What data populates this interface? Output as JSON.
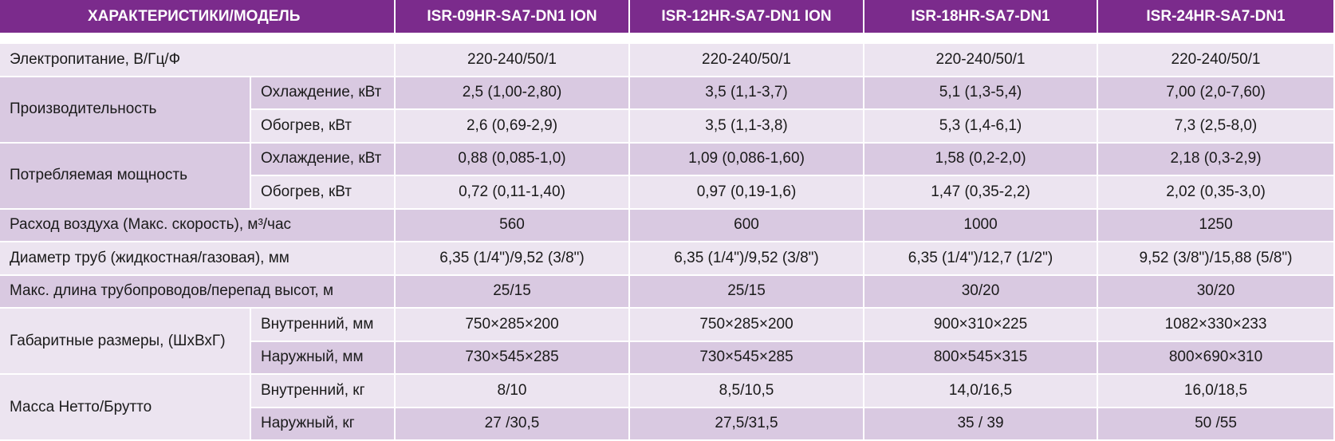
{
  "table": {
    "header": [
      "ХАРАКТЕРИСТИКИ/МОДЕЛЬ",
      "ISR-09HR-SA7-DN1 ION",
      "ISR-12HR-SA7-DN1 ION",
      "ISR-18HR-SA7-DN1",
      "ISR-24HR-SA7-DN1"
    ],
    "rows": [
      {
        "label": "Электропитание, В/Гц/Ф",
        "values": [
          "220-240/50/1",
          "220-240/50/1",
          "220-240/50/1",
          "220-240/50/1"
        ]
      },
      {
        "label": "Производительность",
        "subrows": [
          {
            "label": "Охлаждение, кВт",
            "values": [
              "2,5 (1,00-2,80)",
              "3,5 (1,1-3,7)",
              "5,1 (1,3-5,4)",
              "7,00 (2,0-7,60)"
            ]
          },
          {
            "label": "Обогрев, кВт",
            "values": [
              "2,6 (0,69-2,9)",
              "3,5 (1,1-3,8)",
              "5,3 (1,4-6,1)",
              "7,3 (2,5-8,0)"
            ]
          }
        ]
      },
      {
        "label": "Потребляемая мощность",
        "subrows": [
          {
            "label": "Охлаждение, кВт",
            "values": [
              "0,88 (0,085-1,0)",
              "1,09 (0,086-1,60)",
              "1,58 (0,2-2,0)",
              "2,18 (0,3-2,9)"
            ]
          },
          {
            "label": "Обогрев, кВт",
            "values": [
              "0,72 (0,11-1,40)",
              "0,97 (0,19-1,6)",
              "1,47 (0,35-2,2)",
              "2,02 (0,35-3,0)"
            ]
          }
        ]
      },
      {
        "label": "Расход воздуха (Макс. скорость), м³/час",
        "values": [
          "560",
          "600",
          "1000",
          "1250"
        ]
      },
      {
        "label": "Диаметр труб (жидкостная/газовая), мм",
        "values": [
          "6,35 (1/4\")/9,52 (3/8\")",
          "6,35 (1/4\")/9,52 (3/8\")",
          "6,35 (1/4\")/12,7 (1/2\")",
          "9,52 (3/8\")/15,88 (5/8\")"
        ]
      },
      {
        "label": "Макс. длина трубопроводов/перепад высот, м",
        "values": [
          "25/15",
          "25/15",
          "30/20",
          "30/20"
        ]
      },
      {
        "label": "Габаритные размеры, (ШхВхГ)",
        "subrows": [
          {
            "label": "Внутренний, мм",
            "values": [
              "750×285×200",
              "750×285×200",
              "900×310×225",
              "1082×330×233"
            ]
          },
          {
            "label": "Наружный, мм",
            "values": [
              "730×545×285",
              "730×545×285",
              "800×545×315",
              "800×690×310"
            ]
          }
        ]
      },
      {
        "label": "Масса Нетто/Брутто",
        "subrows": [
          {
            "label": "Внутренний, кг",
            "values": [
              "8/10",
              "8,5/10,5",
              "14,0/16,5",
              "16,0/18,5"
            ]
          },
          {
            "label": "Наружный, кг",
            "values": [
              "27 /30,5",
              "27,5/31,5",
              "35 / 39",
              "50 /55"
            ]
          }
        ]
      }
    ]
  }
}
